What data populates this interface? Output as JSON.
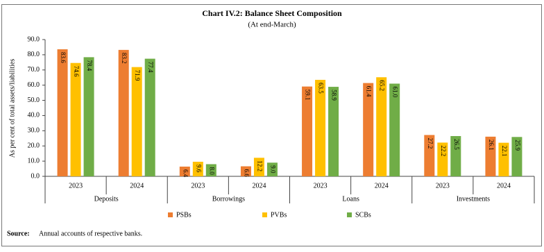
{
  "chart_data": {
    "type": "bar",
    "title": "Chart IV.2: Balance Sheet Composition",
    "subtitle": "(At end-March)",
    "y_label": "As per cent of total assets/liabilities",
    "categories": [
      "2023",
      "2024",
      "2023",
      "2024",
      "2023",
      "2024",
      "2023",
      "2024"
    ],
    "groups": [
      "Deposits",
      "Borrowings",
      "Loans",
      "Investments"
    ],
    "series": [
      {
        "name": "PSBs",
        "color": "#ed7d31",
        "values": [
          83.6,
          83.2,
          6.4,
          6.6,
          59.1,
          61.4,
          27.2,
          26.1
        ],
        "value_labels": [
          "83.6",
          "83.2",
          "6.4",
          "6.6",
          "59.1",
          "61.4",
          "27.2",
          "26.1"
        ]
      },
      {
        "name": "PVBs",
        "color": "#ffc000",
        "values": [
          74.6,
          71.9,
          9.6,
          12.2,
          63.5,
          65.2,
          22.2,
          22.1
        ],
        "value_labels": [
          "74.6",
          "71.9",
          "9.6",
          "12.2",
          "63.5",
          "65.2",
          "22.2",
          "22.1"
        ]
      },
      {
        "name": "SCBs",
        "color": "#70ad47",
        "values": [
          78.4,
          77.4,
          8.0,
          9.0,
          58.9,
          61.0,
          26.5,
          25.9
        ],
        "value_labels": [
          "78.4",
          "77.4",
          "8.0",
          "9.0",
          "58.9",
          "61.0",
          "26.5",
          "25.9"
        ]
      }
    ],
    "ylim": [
      0,
      90
    ],
    "yticks": [
      {
        "value": 0,
        "label": "0.0"
      },
      {
        "value": 10,
        "label": "10.0"
      },
      {
        "value": 20,
        "label": "20.0"
      },
      {
        "value": 30,
        "label": "30.0"
      },
      {
        "value": 40,
        "label": "40.0"
      },
      {
        "value": 50,
        "label": "50.0"
      },
      {
        "value": 60,
        "label": "60.0"
      },
      {
        "value": 70,
        "label": "70.0"
      },
      {
        "value": 80,
        "label": "80.0"
      },
      {
        "value": 90,
        "label": "90.0"
      }
    ],
    "source_label": "Source:",
    "source": "Annual accounts of respective banks."
  }
}
